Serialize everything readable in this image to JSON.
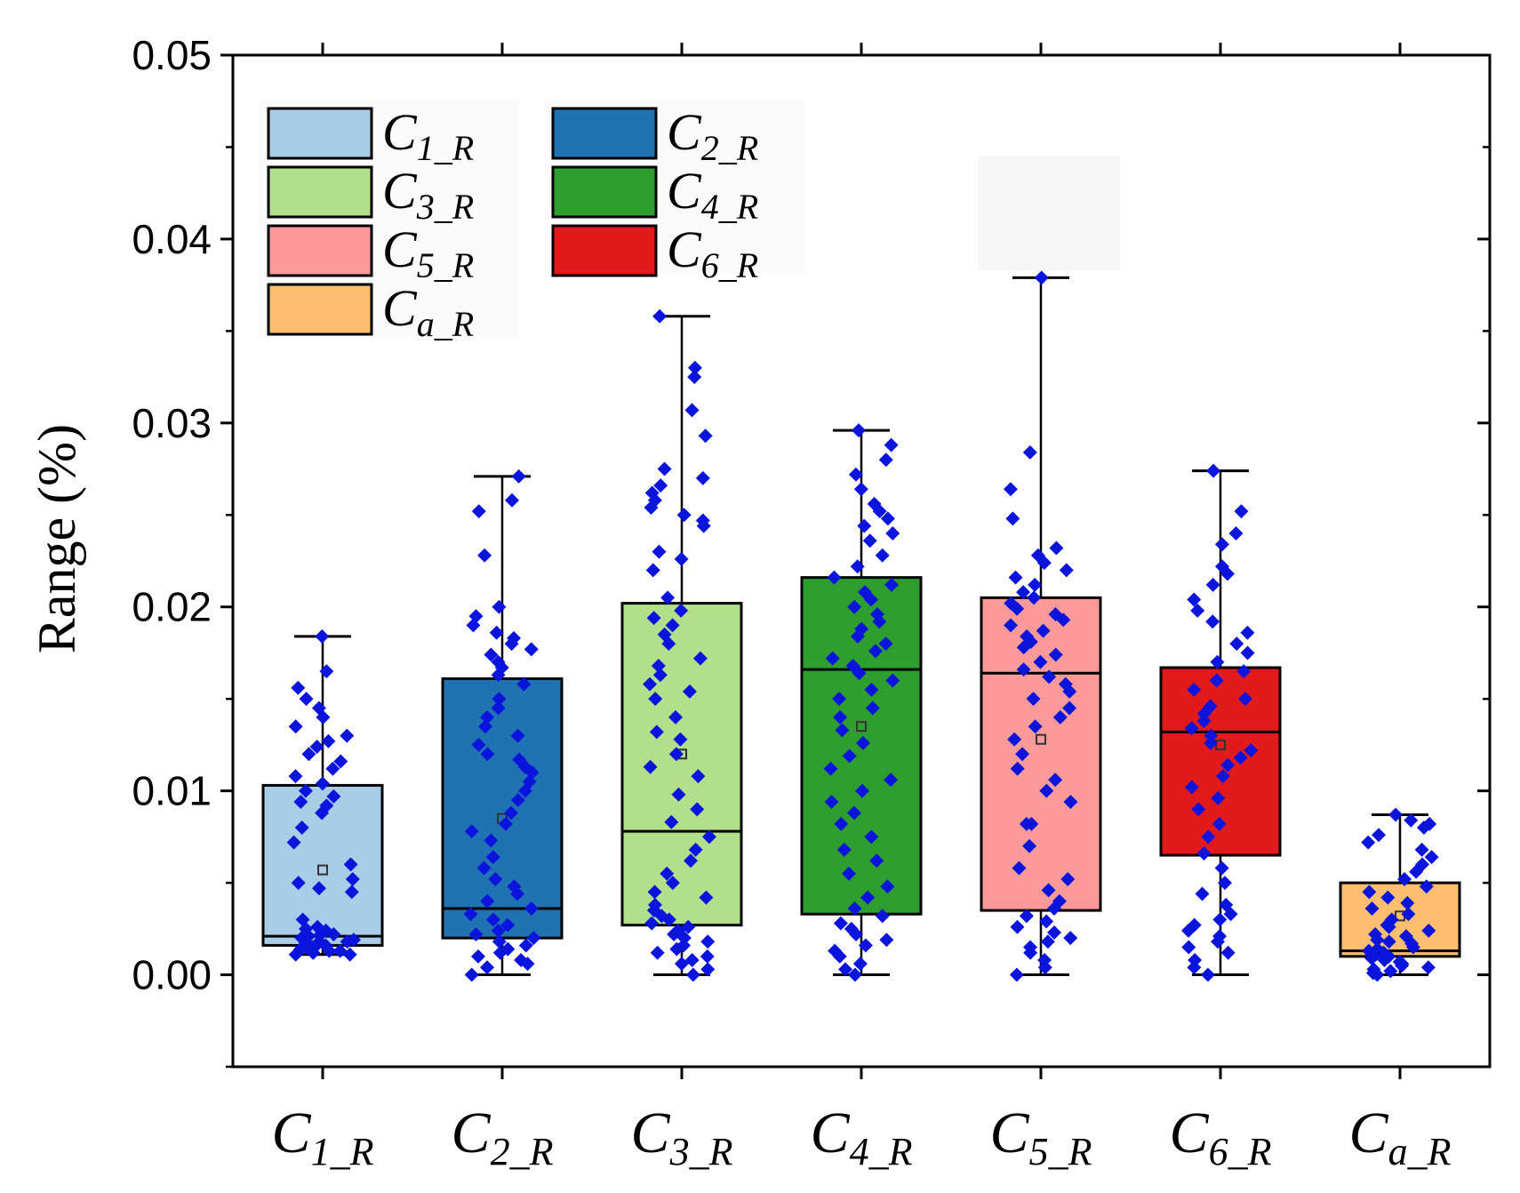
{
  "chart_data": {
    "type": "box",
    "title": "",
    "xlabel": "",
    "ylabel": "Range (%)",
    "ylim": [
      -0.005,
      0.05
    ],
    "yticks": [
      "0.00",
      "0.01",
      "0.02",
      "0.03",
      "0.04",
      "0.05"
    ],
    "ytick_values": [
      0,
      0.01,
      0.02,
      0.03,
      0.04,
      0.05
    ],
    "grid": false,
    "legend_position": "top-left",
    "point_color": "#0a14dc",
    "categories": [
      {
        "id": "C1_R",
        "base": "C",
        "sub": "1_R",
        "color": "#a9cde6",
        "min": 0.0011,
        "q1": 0.0016,
        "median": 0.0021,
        "q3": 0.0103,
        "max": 0.0184,
        "mean": 0.0057
      },
      {
        "id": "C2_R",
        "base": "C",
        "sub": "2_R",
        "color": "#1f73b3",
        "min": 0.0,
        "q1": 0.002,
        "median": 0.0036,
        "q3": 0.0161,
        "max": 0.0271,
        "mean": 0.0085
      },
      {
        "id": "C3_R",
        "base": "C",
        "sub": "3_R",
        "color": "#b2df8a",
        "min": 0.0,
        "q1": 0.0027,
        "median": 0.0078,
        "q3": 0.0202,
        "max": 0.0358,
        "mean": 0.012
      },
      {
        "id": "C4_R",
        "base": "C",
        "sub": "4_R",
        "color": "#2e9e2e",
        "min": 0.0,
        "q1": 0.0033,
        "median": 0.0166,
        "q3": 0.0216,
        "max": 0.0296,
        "mean": 0.0135
      },
      {
        "id": "C5_R",
        "base": "C",
        "sub": "5_R",
        "color": "#fb9a99",
        "min": 0.0,
        "q1": 0.0035,
        "median": 0.0164,
        "q3": 0.0205,
        "max": 0.0379,
        "mean": 0.0128
      },
      {
        "id": "C6_R",
        "base": "C",
        "sub": "6_R",
        "color": "#e31a1c",
        "min": 0.0,
        "q1": 0.0065,
        "median": 0.0132,
        "q3": 0.0167,
        "max": 0.0274,
        "mean": 0.0125
      },
      {
        "id": "Ca_R",
        "base": "C",
        "sub": "a_R",
        "color": "#fdbf6f",
        "min": 0.0,
        "q1": 0.001,
        "median": 0.0013,
        "q3": 0.005,
        "max": 0.0087,
        "mean": 0.0032
      }
    ],
    "points": [
      [
        0.0184,
        0.0165,
        0.0156,
        0.015,
        0.0145,
        0.014,
        0.0135,
        0.013,
        0.0127,
        0.0124,
        0.012,
        0.0116,
        0.0112,
        0.0108,
        0.0104,
        0.01,
        0.0097,
        0.0094,
        0.0092,
        0.0088,
        0.008,
        0.0072,
        0.006,
        0.0052,
        0.005,
        0.0047,
        0.0045,
        0.003,
        0.0026,
        0.0024,
        0.0022,
        0.0021,
        0.002,
        0.0019,
        0.0018,
        0.0017,
        0.0016,
        0.0015,
        0.0014,
        0.0013,
        0.0012,
        0.0012,
        0.0011,
        0.0011,
        0.0015,
        0.0018,
        0.0022,
        0.0025,
        0.0013,
        0.0016
      ],
      [
        0.0271,
        0.0258,
        0.0252,
        0.0228,
        0.02,
        0.0195,
        0.019,
        0.0186,
        0.0183,
        0.018,
        0.0177,
        0.0174,
        0.017,
        0.0167,
        0.0163,
        0.0158,
        0.015,
        0.0145,
        0.014,
        0.0135,
        0.013,
        0.0125,
        0.012,
        0.0117,
        0.0113,
        0.011,
        0.0105,
        0.01,
        0.0095,
        0.0088,
        0.0082,
        0.0078,
        0.0073,
        0.0064,
        0.0058,
        0.0052,
        0.0048,
        0.0044,
        0.004,
        0.0036,
        0.0033,
        0.003,
        0.0027,
        0.0024,
        0.0022,
        0.002,
        0.0018,
        0.0016,
        0.0014,
        0.0012,
        0.001,
        0.0008,
        0.0006,
        0.0004,
        0.0
      ],
      [
        0.0358,
        0.033,
        0.0325,
        0.0307,
        0.0293,
        0.0275,
        0.027,
        0.0266,
        0.0262,
        0.0258,
        0.0254,
        0.025,
        0.0247,
        0.0244,
        0.023,
        0.0226,
        0.022,
        0.0205,
        0.0198,
        0.0194,
        0.019,
        0.0185,
        0.018,
        0.0172,
        0.0168,
        0.0163,
        0.0158,
        0.0154,
        0.015,
        0.014,
        0.0132,
        0.0128,
        0.012,
        0.0113,
        0.0108,
        0.0098,
        0.009,
        0.0083,
        0.0075,
        0.0068,
        0.0062,
        0.0055,
        0.005,
        0.0045,
        0.0042,
        0.0038,
        0.0035,
        0.0032,
        0.003,
        0.0028,
        0.0026,
        0.0024,
        0.0022,
        0.002,
        0.0018,
        0.0016,
        0.0014,
        0.0012,
        0.001,
        0.0008,
        0.0006,
        0.0003,
        0.0
      ],
      [
        0.0296,
        0.0288,
        0.028,
        0.0272,
        0.0264,
        0.0256,
        0.0252,
        0.0248,
        0.0244,
        0.024,
        0.0236,
        0.0228,
        0.0222,
        0.0216,
        0.0212,
        0.0208,
        0.0204,
        0.02,
        0.0196,
        0.0192,
        0.0188,
        0.0184,
        0.018,
        0.0176,
        0.0172,
        0.0168,
        0.0164,
        0.016,
        0.0155,
        0.015,
        0.0145,
        0.014,
        0.0133,
        0.0126,
        0.0119,
        0.0112,
        0.0106,
        0.01,
        0.0094,
        0.0088,
        0.0082,
        0.0075,
        0.0068,
        0.0062,
        0.0055,
        0.0048,
        0.0042,
        0.0036,
        0.0032,
        0.0028,
        0.0025,
        0.0022,
        0.0019,
        0.0016,
        0.0013,
        0.001,
        0.0006,
        0.0003,
        0.0
      ],
      [
        0.0379,
        0.0284,
        0.0264,
        0.0248,
        0.0232,
        0.0228,
        0.0224,
        0.022,
        0.0216,
        0.0212,
        0.0208,
        0.0205,
        0.0202,
        0.0199,
        0.0196,
        0.0193,
        0.019,
        0.0187,
        0.0184,
        0.0181,
        0.0178,
        0.0174,
        0.017,
        0.0166,
        0.0162,
        0.0158,
        0.0154,
        0.015,
        0.0145,
        0.014,
        0.0135,
        0.0128,
        0.012,
        0.0112,
        0.0106,
        0.01,
        0.0094,
        0.0082,
        0.0082,
        0.007,
        0.0058,
        0.0052,
        0.0046,
        0.004,
        0.0036,
        0.0032,
        0.0029,
        0.0026,
        0.0023,
        0.002,
        0.0018,
        0.0015,
        0.0012,
        0.0008,
        0.0004,
        0.0
      ],
      [
        0.0274,
        0.0252,
        0.024,
        0.0234,
        0.0222,
        0.0218,
        0.0212,
        0.0204,
        0.0198,
        0.0192,
        0.0186,
        0.018,
        0.0175,
        0.017,
        0.0165,
        0.016,
        0.0155,
        0.015,
        0.0146,
        0.0142,
        0.0138,
        0.0134,
        0.013,
        0.0126,
        0.0122,
        0.0118,
        0.0114,
        0.0108,
        0.0102,
        0.0096,
        0.009,
        0.0082,
        0.0075,
        0.0066,
        0.0058,
        0.005,
        0.0044,
        0.0038,
        0.0033,
        0.003,
        0.0027,
        0.0024,
        0.0021,
        0.0018,
        0.0015,
        0.0012,
        0.0008,
        0.0004,
        0.0
      ],
      [
        0.0087,
        0.0084,
        0.0082,
        0.008,
        0.0076,
        0.0072,
        0.0068,
        0.0064,
        0.006,
        0.0056,
        0.0052,
        0.0048,
        0.0045,
        0.0042,
        0.0039,
        0.0036,
        0.0033,
        0.003,
        0.0027,
        0.0024,
        0.0021,
        0.0019,
        0.0017,
        0.0015,
        0.0013,
        0.0012,
        0.0011,
        0.001,
        0.0009,
        0.0008,
        0.0007,
        0.0006,
        0.0005,
        0.0004,
        0.0003,
        0.0002,
        0.0001,
        0.0,
        0.0014,
        0.0018,
        0.0022,
        0.0026
      ]
    ],
    "legend": [
      {
        "base": "C",
        "sub": "1_R",
        "color": "#a9cde6"
      },
      {
        "base": "C",
        "sub": "2_R",
        "color": "#1f73b3"
      },
      {
        "base": "C",
        "sub": "3_R",
        "color": "#b2df8a"
      },
      {
        "base": "C",
        "sub": "4_R",
        "color": "#2e9e2e"
      },
      {
        "base": "C",
        "sub": "5_R",
        "color": "#fb9a99"
      },
      {
        "base": "C",
        "sub": "6_R",
        "color": "#e31a1c"
      },
      {
        "base": "C",
        "sub": "a_R",
        "color": "#fdbf6f"
      }
    ]
  }
}
